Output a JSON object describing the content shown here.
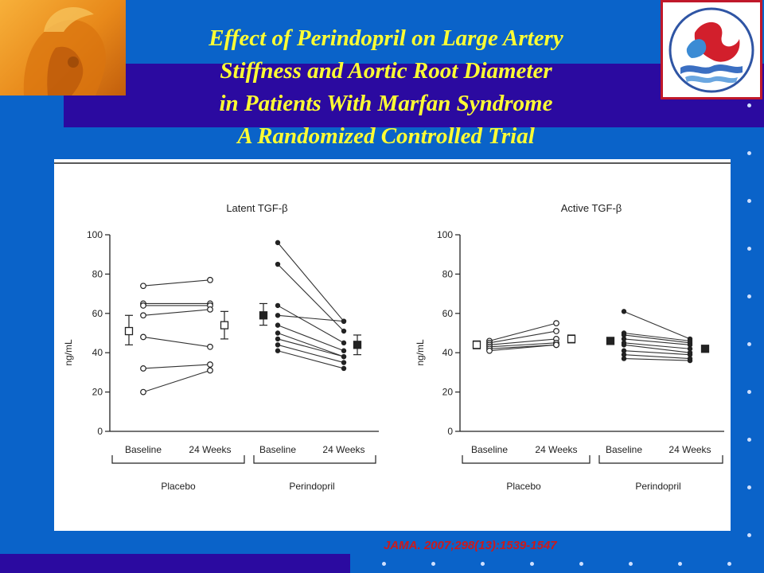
{
  "slide": {
    "title_lines": [
      "Effect of Perindopril on Large Artery",
      "Stiffness and Aortic Root Diameter",
      "in Patients With Marfan Syndrome",
      "A Randomized Controlled Trial"
    ],
    "citation": "JAMA. 2007;298(13):1539-1547"
  },
  "colors": {
    "background": "#0a63c9",
    "band": "#2b0aa0",
    "title": "#ffff33",
    "citation": "#cc1a1a"
  },
  "chart_data": [
    {
      "type": "line",
      "title": "Latent TGF-β",
      "ylabel": "ng/mL",
      "ylim": [
        0,
        100
      ],
      "yticks": [
        0,
        20,
        40,
        60,
        80,
        100
      ],
      "time_labels": [
        "Baseline",
        "24 Weeks"
      ],
      "groups": [
        {
          "name": "Placebo",
          "marker": "open",
          "pairs": [
            [
              74,
              77
            ],
            [
              65,
              65
            ],
            [
              64,
              64
            ],
            [
              59,
              62
            ],
            [
              48,
              43
            ],
            [
              32,
              34
            ],
            [
              20,
              31
            ]
          ],
          "summary": {
            "baseline": {
              "mean": 51,
              "low": 44,
              "high": 59
            },
            "week24": {
              "mean": 54,
              "low": 47,
              "high": 61
            }
          }
        },
        {
          "name": "Perindopril",
          "marker": "filled",
          "pairs": [
            [
              96,
              56
            ],
            [
              85,
              51
            ],
            [
              64,
              45
            ],
            [
              59,
              56
            ],
            [
              54,
              41
            ],
            [
              50,
              38
            ],
            [
              47,
              38
            ],
            [
              44,
              35
            ],
            [
              41,
              32
            ]
          ],
          "summary": {
            "baseline": {
              "mean": 59,
              "low": 54,
              "high": 65
            },
            "week24": {
              "mean": 44,
              "low": 39,
              "high": 49
            }
          }
        }
      ]
    },
    {
      "type": "line",
      "title": "Active TGF-β",
      "ylabel": "ng/mL",
      "ylim": [
        0,
        100
      ],
      "yticks": [
        0,
        20,
        40,
        60,
        80,
        100
      ],
      "time_labels": [
        "Baseline",
        "24 Weeks"
      ],
      "groups": [
        {
          "name": "Placebo",
          "marker": "open",
          "pairs": [
            [
              46,
              55
            ],
            [
              45,
              51
            ],
            [
              44,
              47
            ],
            [
              43,
              45
            ],
            [
              42,
              44
            ],
            [
              41,
              44
            ]
          ],
          "summary": {
            "baseline": {
              "mean": 44,
              "low": 42,
              "high": 46
            },
            "week24": {
              "mean": 47,
              "low": 45,
              "high": 49
            }
          }
        },
        {
          "name": "Perindopril",
          "marker": "filled",
          "pairs": [
            [
              61,
              47
            ],
            [
              50,
              46
            ],
            [
              49,
              45
            ],
            [
              47,
              44
            ],
            [
              45,
              42
            ],
            [
              44,
              40
            ],
            [
              41,
              39
            ],
            [
              39,
              37
            ],
            [
              37,
              36
            ]
          ],
          "summary": {
            "baseline": {
              "mean": 46,
              "low": 45,
              "high": 47
            },
            "week24": {
              "mean": 42,
              "low": 41,
              "high": 43
            }
          }
        }
      ]
    }
  ]
}
